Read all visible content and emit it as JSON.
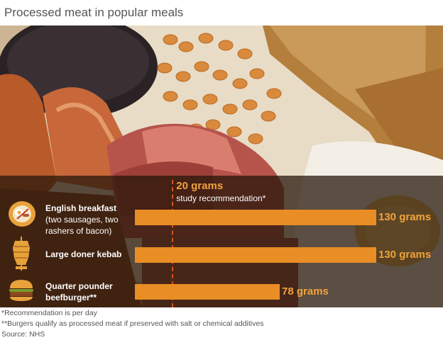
{
  "title": "Processed meat in popular meals",
  "chart_data": {
    "type": "bar",
    "orientation": "horizontal",
    "categories": [
      "English breakfast (two sausages, two rashers of bacon)",
      "Large doner kebab",
      "Quarter pounder beefburger**"
    ],
    "values": [
      130,
      130,
      78
    ],
    "unit": "grams",
    "value_labels": [
      "130 grams",
      "130 grams",
      "78 grams"
    ],
    "reference": {
      "value": 20,
      "value_label": "20 grams",
      "label": "study recommendation*"
    },
    "xlim": [
      0,
      130
    ],
    "grid": false,
    "legend": "none",
    "colors": {
      "bar": "#e98d25",
      "value_text": "#f2a23b",
      "reference_line": "#d4541a"
    }
  },
  "category_display": [
    {
      "main": "English breakfast",
      "sub": "(two sausages, two rashers of bacon)",
      "icon": "breakfast-icon"
    },
    {
      "main": "Large doner kebab",
      "sub": "",
      "icon": "kebab-icon"
    },
    {
      "main": "Quarter pounder beefburger**",
      "sub": "",
      "icon": "burger-icon"
    }
  ],
  "footnotes": [
    "*Recommendation is per day",
    "**Burgers qualify as processed meat if preserved with salt or chemical additives",
    "Source: NHS"
  ],
  "background": "photo of a cooked breakfast: black pudding, baked beans, toast, sausages, bacon, fried egg"
}
